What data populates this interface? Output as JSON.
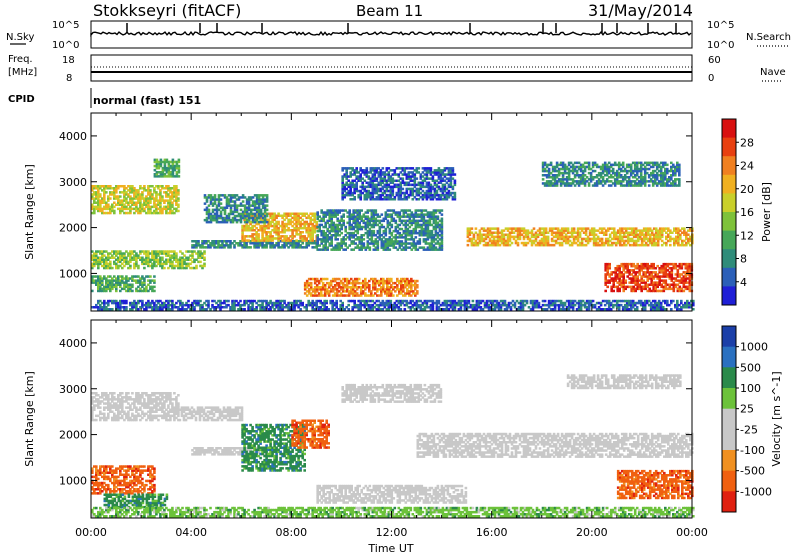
{
  "header": {
    "station": "Stokkseyri (fitACF)",
    "beam": "Beam 11",
    "date": "31/May/2014"
  },
  "nsky": {
    "label": "N.Sky",
    "tick_high": "10^5",
    "tick_low": "10^0"
  },
  "nsearch": {
    "label": "N.Search",
    "tick_high": "10^5",
    "tick_low": "10^0"
  },
  "freq": {
    "label_line1": "Freq.",
    "label_line2": "[MHz]",
    "tick_high": "18",
    "tick_low": "8"
  },
  "nave": {
    "label": "Nave",
    "tick_high": "60",
    "tick_low": "0"
  },
  "cpid": {
    "label": "CPID",
    "value": "normal (fast) 151"
  },
  "colors": {
    "power": [
      "#1f1fd6",
      "#2b5fb8",
      "#2f8c7a",
      "#46a758",
      "#7ec23a",
      "#c9cf2a",
      "#f0b020",
      "#f08020",
      "#e84010",
      "#d81010"
    ],
    "velocity": [
      "#1b3fa8",
      "#2a70c0",
      "#2a8a4a",
      "#6cc23a",
      "#c8c8c8",
      "#c8c8c8",
      "#f09020",
      "#f06010",
      "#e02010"
    ]
  },
  "chart_data": [
    {
      "type": "heatmap",
      "title": "",
      "xlabel": "Time UT",
      "ylabel": "Slant Range [km]",
      "ylim": [
        180,
        4500
      ],
      "xlim": [
        "00:00",
        "24:00"
      ],
      "x_ticks": [
        "00:00",
        "04:00",
        "08:00",
        "12:00",
        "16:00",
        "20:00",
        "00:00"
      ],
      "y_ticks": [
        "1000",
        "2000",
        "3000",
        "4000"
      ],
      "colorbar": {
        "label": "Power [dB]",
        "ticks": [
          "4",
          "8",
          "12",
          "16",
          "20",
          "24",
          "28"
        ],
        "range": [
          0,
          30
        ]
      },
      "regions": [
        {
          "t": [
            0.0,
            4.5
          ],
          "r": [
            1100,
            1500
          ],
          "v": 12
        },
        {
          "t": [
            0.0,
            2.5
          ],
          "r": [
            600,
            950
          ],
          "v": 10
        },
        {
          "t": [
            0.0,
            3.5
          ],
          "r": [
            2300,
            2900
          ],
          "v": 16
        },
        {
          "t": [
            2.5,
            3.5
          ],
          "r": [
            3100,
            3500
          ],
          "v": 10
        },
        {
          "t": [
            4.0,
            9.0
          ],
          "r": [
            1550,
            1700
          ],
          "v": 6
        },
        {
          "t": [
            6.0,
            9.0
          ],
          "r": [
            1700,
            2300
          ],
          "v": 20
        },
        {
          "t": [
            4.5,
            7.0
          ],
          "r": [
            2100,
            2700
          ],
          "v": 8
        },
        {
          "t": [
            8.5,
            13.0
          ],
          "r": [
            500,
            900
          ],
          "v": 22
        },
        {
          "t": [
            9.0,
            14.0
          ],
          "r": [
            1500,
            2400
          ],
          "v": 6
        },
        {
          "t": [
            10.0,
            14.5
          ],
          "r": [
            2600,
            3300
          ],
          "v": 4
        },
        {
          "t": [
            15.0,
            24.0
          ],
          "r": [
            1600,
            2000
          ],
          "v": 18
        },
        {
          "t": [
            18.0,
            23.5
          ],
          "r": [
            2900,
            3400
          ],
          "v": 6
        },
        {
          "t": [
            20.5,
            24.0
          ],
          "r": [
            600,
            1200
          ],
          "v": 24
        },
        {
          "t": [
            0.0,
            24.0
          ],
          "r": [
            200,
            420
          ],
          "v": 4
        }
      ]
    },
    {
      "type": "heatmap",
      "title": "",
      "xlabel": "Time UT",
      "ylabel": "Slant Range [km]",
      "ylim": [
        180,
        4500
      ],
      "xlim": [
        "00:00",
        "24:00"
      ],
      "x_ticks": [
        "00:00",
        "04:00",
        "08:00",
        "12:00",
        "16:00",
        "20:00",
        "00:00"
      ],
      "y_ticks": [
        "1000",
        "2000",
        "3000",
        "4000"
      ],
      "colorbar": {
        "label": "Velocity [m s^-1]",
        "ticks": [
          "1000",
          "500",
          "100",
          "25",
          "-25",
          "-100",
          "-500",
          "-1000"
        ]
      },
      "regions": [
        {
          "t": [
            0.0,
            2.5
          ],
          "r": [
            700,
            1300
          ],
          "v": -500
        },
        {
          "t": [
            0.5,
            3.0
          ],
          "r": [
            400,
            700
          ],
          "v": 300
        },
        {
          "t": [
            0.0,
            3.5
          ],
          "r": [
            2300,
            2900
          ],
          "v": 0
        },
        {
          "t": [
            3.5,
            6.0
          ],
          "r": [
            2300,
            2600
          ],
          "v": 0
        },
        {
          "t": [
            4.0,
            7.0
          ],
          "r": [
            1550,
            1700
          ],
          "v": 0
        },
        {
          "t": [
            6.0,
            8.5
          ],
          "r": [
            1200,
            2200
          ],
          "v": 300
        },
        {
          "t": [
            8.0,
            9.5
          ],
          "r": [
            1700,
            2300
          ],
          "v": -500
        },
        {
          "t": [
            9.0,
            15.0
          ],
          "r": [
            500,
            900
          ],
          "v": 0
        },
        {
          "t": [
            13.0,
            24.0
          ],
          "r": [
            1500,
            2000
          ],
          "v": 0
        },
        {
          "t": [
            10.0,
            14.0
          ],
          "r": [
            2700,
            3100
          ],
          "v": 0
        },
        {
          "t": [
            19.0,
            23.5
          ],
          "r": [
            3000,
            3300
          ],
          "v": 0
        },
        {
          "t": [
            21.0,
            24.0
          ],
          "r": [
            600,
            1200
          ],
          "v": -500
        },
        {
          "t": [
            0.0,
            24.0
          ],
          "r": [
            200,
            400
          ],
          "v": 50
        }
      ]
    }
  ]
}
